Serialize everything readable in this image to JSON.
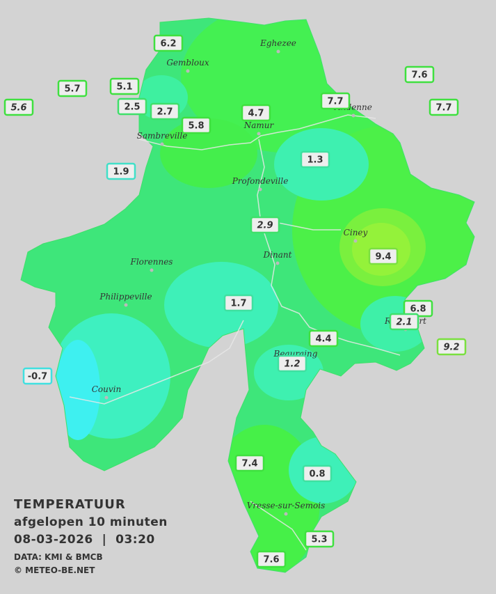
{
  "map": {
    "title": "TEMPERATUUR",
    "subtitle": "afgelopen 10 minuten",
    "datetime": "08-03-2026  |  03:20",
    "source": "DATA: KMI & BMCB",
    "credit": "© METEO-BE.NET",
    "cities": [
      "Eghezee",
      "Gembloux",
      "Andenne",
      "Namur",
      "Sambreville",
      "Profondeville",
      "Ciney",
      "Dinant",
      "Florennes",
      "Philippeville",
      "Rochefort",
      "Beauraing",
      "Couvin",
      "Vresse-sur-Semois"
    ],
    "stations": [
      {
        "value": 6.2,
        "border": "#3fe03f"
      },
      {
        "value": 7.6,
        "border": "#3fe03f"
      },
      {
        "value": 5.7,
        "border": "#3fe03f"
      },
      {
        "value": 5.1,
        "border": "#3fe03f"
      },
      {
        "value": 5.6,
        "border": "#3fe03f",
        "italic": true
      },
      {
        "value": 2.5,
        "border": "#3fe06a"
      },
      {
        "value": 2.7,
        "border": "#3fe06a"
      },
      {
        "value": 4.7,
        "border": "#3fe03f"
      },
      {
        "value": 7.7,
        "border": "#3fe03f"
      },
      {
        "value": 7.7,
        "border": "#3fe03f"
      },
      {
        "value": 5.8,
        "border": "#3fe03f"
      },
      {
        "value": 1.3,
        "border": "#3fe0a0"
      },
      {
        "value": 1.9,
        "border": "#40e0c8"
      },
      {
        "value": 2.9,
        "border": "#3fe06a",
        "italic": true
      },
      {
        "value": 9.4,
        "border": "#7ae03f"
      },
      {
        "value": 1.7,
        "border": "#3fe0a0"
      },
      {
        "value": 6.8,
        "border": "#3fe03f"
      },
      {
        "value": 2.1,
        "border": "#3fe06a",
        "italic": true
      },
      {
        "value": 4.4,
        "border": "#3fe03f"
      },
      {
        "value": 9.2,
        "border": "#7ae03f",
        "italic": true
      },
      {
        "value": 1.2,
        "border": "#3fe0a0",
        "italic": true
      },
      {
        "value": -0.7,
        "border": "#40e0e0"
      },
      {
        "value": 7.4,
        "border": "#3fe03f"
      },
      {
        "value": 0.8,
        "border": "#3fe0a0"
      },
      {
        "value": 5.3,
        "border": "#3fe03f"
      },
      {
        "value": 7.6,
        "border": "#3fe03f"
      }
    ]
  }
}
